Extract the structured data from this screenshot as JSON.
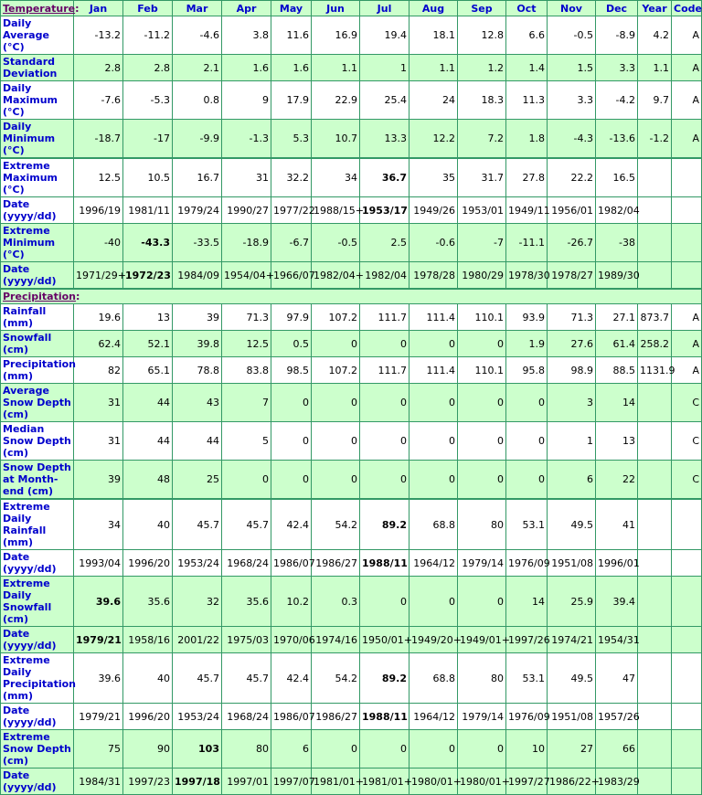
{
  "colors": {
    "border": "#339966",
    "shade": "#ccffcc",
    "label": "#0000cc",
    "section": "#660066"
  },
  "header": {
    "section": "Temperature",
    "months": [
      "Jan",
      "Feb",
      "Mar",
      "Apr",
      "May",
      "Jun",
      "Jul",
      "Aug",
      "Sep",
      "Oct",
      "Nov",
      "Dec"
    ],
    "year": "Year",
    "code": "Code"
  },
  "temperature": [
    {
      "label": "Daily Average (°C)",
      "values": [
        "-13.2",
        "-11.2",
        "-4.6",
        "3.8",
        "11.6",
        "16.9",
        "19.4",
        "18.1",
        "12.8",
        "6.6",
        "-0.5",
        "-8.9"
      ],
      "year": "4.2",
      "code": "A",
      "shade": false,
      "h": 28
    },
    {
      "label": "Standard Deviation",
      "values": [
        "2.8",
        "2.8",
        "2.1",
        "1.6",
        "1.6",
        "1.1",
        "1",
        "1.1",
        "1.2",
        "1.4",
        "1.5",
        "3.3"
      ],
      "year": "1.1",
      "code": "A",
      "shade": true,
      "h": 28
    },
    {
      "label": "Daily Maximum (°C)",
      "values": [
        "-7.6",
        "-5.3",
        "0.8",
        "9",
        "17.9",
        "22.9",
        "25.4",
        "24",
        "18.3",
        "11.3",
        "3.3",
        "-4.2"
      ],
      "year": "9.7",
      "code": "A",
      "shade": false,
      "h": 42
    },
    {
      "label": "Daily Minimum (°C)",
      "values": [
        "-18.7",
        "-17",
        "-9.9",
        "-1.3",
        "5.3",
        "10.7",
        "13.3",
        "12.2",
        "7.2",
        "1.8",
        "-4.3",
        "-13.6"
      ],
      "year": "-1.2",
      "code": "A",
      "shade": true,
      "h": 41
    },
    {
      "label": "Extreme Maximum (°C)",
      "values": [
        "12.5",
        "10.5",
        "16.7",
        "31",
        "32.2",
        "34",
        "36.7",
        "35",
        "31.7",
        "27.8",
        "22.2",
        "16.5"
      ],
      "year": "",
      "code": "",
      "shade": false,
      "bold": 6,
      "thick": true,
      "h": 41
    },
    {
      "label": "Date (yyyy/dd)",
      "values": [
        "1996/19",
        "1981/11",
        "1979/24",
        "1990/27",
        "1977/22",
        "1988/15+",
        "1953/17",
        "1949/26",
        "1953/01",
        "1949/11",
        "1956/01",
        "1982/04"
      ],
      "year": "",
      "code": "",
      "shade": false,
      "bold": 6,
      "h": 28
    },
    {
      "label": "Extreme Minimum (°C)",
      "values": [
        "-40",
        "-43.3",
        "-33.5",
        "-18.9",
        "-6.7",
        "-0.5",
        "2.5",
        "-0.6",
        "-7",
        "-11.1",
        "-26.7",
        "-38"
      ],
      "year": "",
      "code": "",
      "shade": true,
      "bold": 1,
      "h": 42
    },
    {
      "label": "Date (yyyy/dd)",
      "values": [
        "1971/29+",
        "1972/23",
        "1984/09",
        "1954/04+",
        "1966/07",
        "1982/04+",
        "1982/04",
        "1978/28",
        "1980/29",
        "1978/30",
        "1978/27",
        "1989/30"
      ],
      "year": "",
      "code": "",
      "shade": true,
      "bold": 1,
      "h": 27
    }
  ],
  "precip_section": "Precipitation",
  "precipitation": [
    {
      "label": "Rainfall (mm)",
      "values": [
        "19.6",
        "13",
        "39",
        "71.3",
        "97.9",
        "107.2",
        "111.7",
        "111.4",
        "110.1",
        "93.9",
        "71.3",
        "27.1"
      ],
      "year": "873.7",
      "code": "A",
      "shade": false,
      "h": 15
    },
    {
      "label": "Snowfall (cm)",
      "values": [
        "62.4",
        "52.1",
        "39.8",
        "12.5",
        "0.5",
        "0",
        "0",
        "0",
        "0",
        "1.9",
        "27.6",
        "61.4"
      ],
      "year": "258.2",
      "code": "A",
      "shade": true,
      "h": 28
    },
    {
      "label": "Precipitation (mm)",
      "values": [
        "82",
        "65.1",
        "78.8",
        "83.8",
        "98.5",
        "107.2",
        "111.7",
        "111.4",
        "110.1",
        "95.8",
        "98.9",
        "88.5"
      ],
      "year": "1131.9",
      "code": "A",
      "shade": false,
      "h": 28
    },
    {
      "label": "Average Snow Depth (cm)",
      "values": [
        "31",
        "44",
        "43",
        "7",
        "0",
        "0",
        "0",
        "0",
        "0",
        "0",
        "3",
        "14"
      ],
      "year": "",
      "code": "C",
      "shade": true,
      "h": 42
    },
    {
      "label": "Median Snow Depth (cm)",
      "values": [
        "31",
        "44",
        "44",
        "5",
        "0",
        "0",
        "0",
        "0",
        "0",
        "0",
        "1",
        "13"
      ],
      "year": "",
      "code": "C",
      "shade": false,
      "h": 28
    },
    {
      "label": "Snow Depth at Month-end (cm)",
      "values": [
        "39",
        "48",
        "25",
        "0",
        "0",
        "0",
        "0",
        "0",
        "0",
        "0",
        "6",
        "22"
      ],
      "year": "",
      "code": "C",
      "shade": true,
      "h": 41
    },
    {
      "label": "Extreme Daily Rainfall (mm)",
      "values": [
        "34",
        "40",
        "45.7",
        "45.7",
        "42.4",
        "54.2",
        "89.2",
        "68.8",
        "80",
        "53.1",
        "49.5",
        "41"
      ],
      "year": "",
      "code": "",
      "shade": false,
      "bold": 6,
      "thick": true,
      "h": 27
    },
    {
      "label": "Date (yyyy/dd)",
      "values": [
        "1993/04",
        "1996/20",
        "1953/24",
        "1968/24",
        "1986/07",
        "1986/27",
        "1988/11",
        "1964/12",
        "1979/14",
        "1976/09",
        "1951/08",
        "1996/01"
      ],
      "year": "",
      "code": "",
      "shade": false,
      "bold": 6,
      "h": 28
    },
    {
      "label": "Extreme Daily Snowfall (cm)",
      "values": [
        "39.6",
        "35.6",
        "32",
        "35.6",
        "10.2",
        "0.3",
        "0",
        "0",
        "0",
        "14",
        "25.9",
        "39.4"
      ],
      "year": "",
      "code": "",
      "shade": true,
      "bold": 0,
      "h": 42
    },
    {
      "label": "Date (yyyy/dd)",
      "values": [
        "1979/21",
        "1958/16",
        "2001/22",
        "1975/03",
        "1970/06",
        "1974/16",
        "1950/01+",
        "1949/20+",
        "1949/01+",
        "1997/26",
        "1974/21",
        "1954/31"
      ],
      "year": "",
      "code": "",
      "shade": true,
      "bold": 0,
      "h": 28
    },
    {
      "label": "Extreme Daily Precipitation (mm)",
      "values": [
        "39.6",
        "40",
        "45.7",
        "45.7",
        "42.4",
        "54.2",
        "89.2",
        "68.8",
        "80",
        "53.1",
        "49.5",
        "47"
      ],
      "year": "",
      "code": "",
      "shade": false,
      "bold": 6,
      "h": 42
    },
    {
      "label": "Date (yyyy/dd)",
      "values": [
        "1979/21",
        "1996/20",
        "1953/24",
        "1968/24",
        "1986/07",
        "1986/27",
        "1988/11",
        "1964/12",
        "1979/14",
        "1976/09",
        "1951/08",
        "1957/26"
      ],
      "year": "",
      "code": "",
      "shade": false,
      "bold": 6,
      "h": 27
    },
    {
      "label": "Extreme Snow Depth (cm)",
      "values": [
        "75",
        "90",
        "103",
        "80",
        "6",
        "0",
        "0",
        "0",
        "0",
        "10",
        "27",
        "66"
      ],
      "year": "",
      "code": "",
      "shade": true,
      "bold": 2,
      "h": 42
    },
    {
      "label": "Date (yyyy/dd)",
      "values": [
        "1984/31",
        "1997/23",
        "1997/18",
        "1997/01",
        "1997/07",
        "1981/01+",
        "1981/01+",
        "1980/01+",
        "1980/01+",
        "1997/27",
        "1986/22+",
        "1983/29"
      ],
      "year": "",
      "code": "",
      "shade": true,
      "bold": 2,
      "h": 27
    }
  ]
}
